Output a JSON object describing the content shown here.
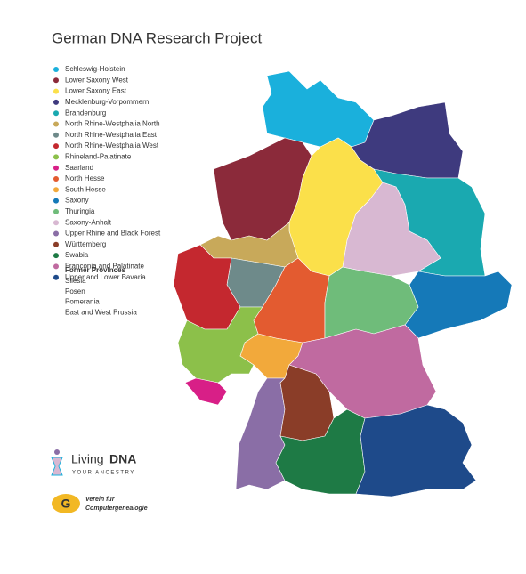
{
  "title": "German DNA Research Project",
  "legend": {
    "items": [
      {
        "name": "Schleswig-Holstein",
        "color": "#1ab0dc"
      },
      {
        "name": "Lower Saxony West",
        "color": "#8b2a3a"
      },
      {
        "name": "Lower Saxony East",
        "color": "#fbe04a"
      },
      {
        "name": "Mecklenburg-Vorpommern",
        "color": "#3e3a7e"
      },
      {
        "name": "Brandenburg",
        "color": "#1aa9b0"
      },
      {
        "name": "North Rhine-Westphalia North",
        "color": "#c8a95a"
      },
      {
        "name": "North Rhine-Westphalia East",
        "color": "#6e8a8a"
      },
      {
        "name": "North Rhine-Westphalia West",
        "color": "#c4282f"
      },
      {
        "name": "Rhineland-Palatinate",
        "color": "#8cc04a"
      },
      {
        "name": "Saarland",
        "color": "#d81f87"
      },
      {
        "name": "North Hesse",
        "color": "#e35b30"
      },
      {
        "name": "South Hesse",
        "color": "#f2a93b"
      },
      {
        "name": "Saxony",
        "color": "#1579b8"
      },
      {
        "name": "Thuringia",
        "color": "#6fbc7a"
      },
      {
        "name": "Saxony-Anhalt",
        "color": "#d8b8d2"
      },
      {
        "name": "Upper Rhine and Black Forest",
        "color": "#8a6ea6"
      },
      {
        "name": "Württemberg",
        "color": "#8a3d28"
      },
      {
        "name": "Swabia",
        "color": "#1e7a45"
      },
      {
        "name": "Franconia and Palatinate",
        "color": "#c06aa0"
      },
      {
        "name": "Upper and Lower Bavaria",
        "color": "#1e4a8a"
      }
    ]
  },
  "former_provinces": {
    "heading": "Former Provinces",
    "items": [
      "Silesia",
      "Posen",
      "Pomerania",
      "East and West Prussia"
    ]
  },
  "logos": {
    "living_dna": {
      "name": "Living",
      "bold": "DNA",
      "tagline": "YOUR ANCESTRY"
    },
    "vfc": {
      "line1": "Verein für",
      "line2": "Computergenealogie"
    }
  }
}
